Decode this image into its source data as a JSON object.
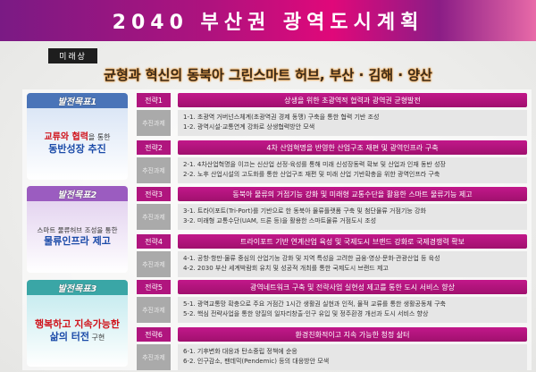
{
  "header": {
    "title": "2040 부산권 광역도시계획",
    "vision_tag": "미래상",
    "vision": "균형과 혁신의 동북아 그린스마트 허브, 부산 · 김해 · 양산"
  },
  "colors": {
    "title_bar": "#b0127e",
    "strategy": "#b0157e",
    "goal1": "#4a74b8",
    "goal2": "#9b5cc0",
    "goal3": "#3aa6a6",
    "emphasis_red": "#d0141c",
    "emphasis_blue": "#1a4aa8"
  },
  "goals": [
    {
      "label": "발전목표1",
      "line1a": "교류와 협력",
      "line1b": "을 통한",
      "line2a": "동반성장 추진",
      "line2b": ""
    },
    {
      "label": "발전목표2",
      "line1a": "",
      "line1b": "스마트 물류허브 조성을 통한",
      "line2a": "물류인프라 제고",
      "line2b": ""
    },
    {
      "label": "발전목표3",
      "line1a": "행복하고 지속가능한",
      "line1b": "",
      "line2a": "삶의 터전",
      "line2b": " 구현"
    }
  ],
  "task_label": "추진과제",
  "strategies": [
    {
      "label": "전략1",
      "title": "상생을 위한 초광역적 협력과 광역권 균형발전",
      "tasks": [
        "1-1. 초광역 거버넌스체계(초광역권 경제 동맹) 구축을 통한 협력 기반 조성",
        "1-2. 광역시설·교통연계 강화로 상생협력방안 모색"
      ]
    },
    {
      "label": "전략2",
      "title": "4차 산업혁명을 반영한 산업구조 재편 및 광역인프라 구축",
      "tasks": [
        "2-1. 4차산업혁명을 이끄는 신산업 선정·육성를 통해 미래 신성장동력 확보 및 산업과 인재 동반 성장",
        "2-2. 노후 산업시설의 고도화를 통한 산업구조 재편 및 미래 산업 기반확충을 위한 광역인프라 구축"
      ]
    },
    {
      "label": "전략3",
      "title": "동북아 물류의 거점기능 강화 및 미래형 교통수단을 활용한 스마트 물류기능 제고",
      "tasks": [
        "3-1. 트라이포트(Tri-Port)를 기반으로 한 동북아 물류플랫폼 구축 및 첨단물류 거점기능 강화",
        "3-2. 미래형 교통수단(UAM, 드론 등)을 활용한 스마트물류 거점도시 조성"
      ]
    },
    {
      "label": "전략4",
      "title": "트라이포트 기반 연계산업 육성 및 국제도시 브랜드 강화로 국제경쟁력 확보",
      "tasks": [
        "4-1. 공항·항만·물류 중심의 산업기능 강화 및 지역 특성을 고려한 금융·영상·문화·관광산업 등 육성",
        "4-2. 2030 부산 세계박람회 유치 및 성공적 개최를 통한 국제도시 브랜드 제고"
      ]
    },
    {
      "label": "전략5",
      "title": "광역네트워크 구축 및 전략사업 실현성 제고를 통한 도시 서비스 향상",
      "tasks": [
        "5-1. 광역교통망 확충으로 주요 거점간 1시간 생활권 실현과 인적, 물적 교류를 통한 생활공동체 구축",
        "5-2. 핵심 전략사업을 통한 양질의 일자리창출·인구 유입 및 정주환경 개선과 도시 서비스 향상"
      ]
    },
    {
      "label": "전략6",
      "title": "환경친화적이고 지속 가능한 청정 삶터",
      "tasks": [
        "6-1. 기후변화 대응과 탄소중립 정책에 순응",
        "6-2. 인구감소, 팬데믹(Pendemic) 등의 대응방안 모색"
      ]
    }
  ]
}
